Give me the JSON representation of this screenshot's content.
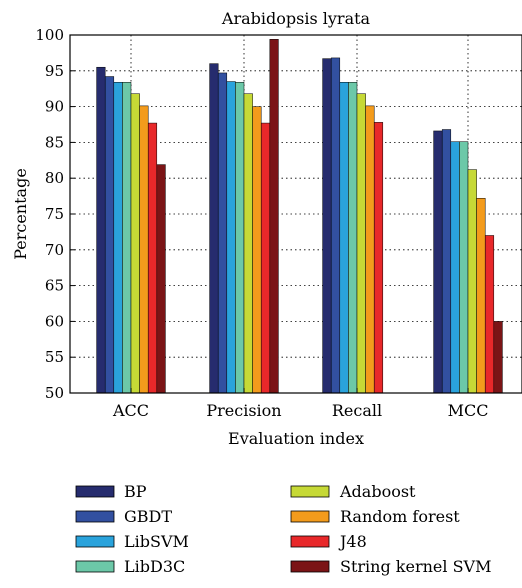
{
  "chart_data": {
    "type": "bar",
    "title": "Arabidopsis lyrata",
    "xlabel": "Evaluation index",
    "ylabel": "Percentage",
    "ylim": [
      50,
      100
    ],
    "yticks": [
      50,
      55,
      60,
      65,
      70,
      75,
      80,
      85,
      90,
      95,
      100
    ],
    "grid": true,
    "legend_position": "bottom",
    "categories": [
      "ACC",
      "Precision",
      "Recall",
      "MCC"
    ],
    "series": [
      {
        "name": "BP",
        "color": "#262c6e",
        "values": [
          95.5,
          96.0,
          96.7,
          86.6
        ]
      },
      {
        "name": "GBDT",
        "color": "#3250a0",
        "values": [
          94.2,
          94.7,
          96.8,
          86.8
        ]
      },
      {
        "name": "LibSVM",
        "color": "#2aa3dc",
        "values": [
          93.4,
          93.5,
          93.4,
          85.1
        ]
      },
      {
        "name": "LibD3C",
        "color": "#6cc8a8",
        "values": [
          93.4,
          93.4,
          93.4,
          85.1
        ]
      },
      {
        "name": "Adaboost",
        "color": "#c6d936",
        "values": [
          91.8,
          91.8,
          91.8,
          81.2
        ]
      },
      {
        "name": "Random forest",
        "color": "#f39b1c",
        "values": [
          90.1,
          90.0,
          90.1,
          77.2
        ]
      },
      {
        "name": "J48",
        "color": "#e8282a",
        "values": [
          87.7,
          87.7,
          87.8,
          72.0
        ]
      },
      {
        "name": "String kernel SVM",
        "color": "#7b1416",
        "values": [
          81.9,
          99.4,
          null,
          60.0
        ]
      }
    ]
  }
}
